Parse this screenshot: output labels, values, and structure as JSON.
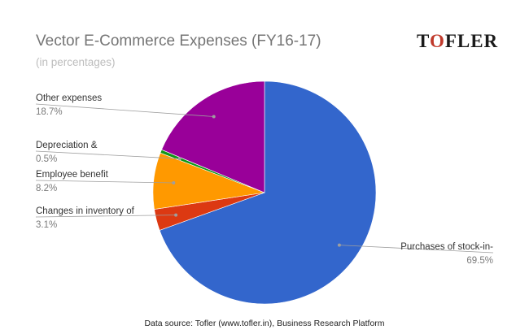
{
  "chart_data": {
    "type": "pie",
    "title": "Vector E-Commerce Expenses (FY16-17)",
    "subtitle": "(in percentages)",
    "slices": [
      {
        "label": "Purchases of stock-in-",
        "value": 69.5,
        "value_label": "69.5%",
        "color": "#3366cc"
      },
      {
        "label": "Changes in inventory of",
        "value": 3.1,
        "value_label": "3.1%",
        "color": "#dc3912"
      },
      {
        "label": "Employee benefit",
        "value": 8.2,
        "value_label": "8.2%",
        "color": "#ff9900"
      },
      {
        "label": "Depreciation &",
        "value": 0.5,
        "value_label": "0.5%",
        "color": "#109618"
      },
      {
        "label": "Other expenses",
        "value": 18.7,
        "value_label": "18.7%",
        "color": "#990099"
      }
    ]
  },
  "logo": {
    "text": "TOFLER"
  },
  "footer": {
    "text": "Data source: Tofler (www.tofler.in), Business Research Platform"
  }
}
